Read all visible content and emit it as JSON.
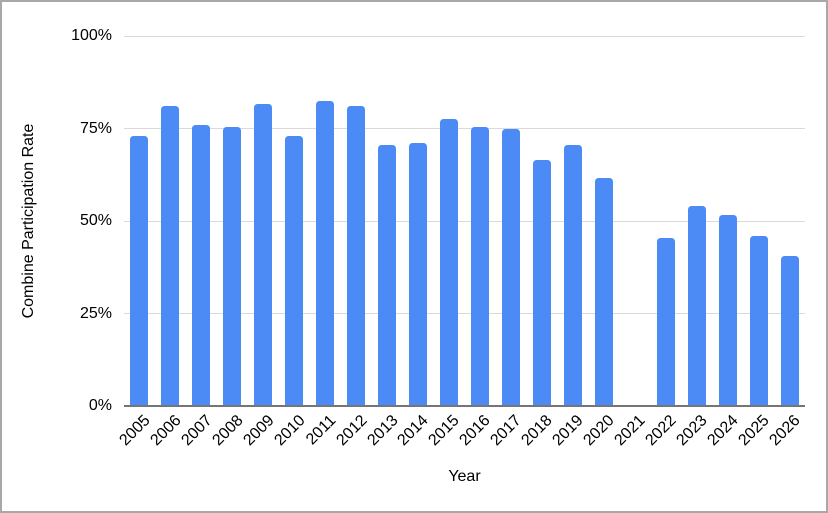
{
  "chart_data": {
    "type": "bar",
    "title": "",
    "xlabel": "Year",
    "ylabel": "Combine Participation Rate",
    "categories": [
      "2005",
      "2006",
      "2007",
      "2008",
      "2009",
      "2010",
      "2011",
      "2012",
      "2013",
      "2014",
      "2015",
      "2016",
      "2017",
      "2018",
      "2019",
      "2020",
      "2021",
      "2022",
      "2023",
      "2024",
      "2025",
      "2026"
    ],
    "values": [
      73,
      81,
      76,
      75.5,
      81.5,
      73,
      82.5,
      81,
      70.5,
      71,
      77.5,
      75.5,
      75,
      66.5,
      70.5,
      61.5,
      null,
      45.5,
      54,
      51.5,
      46,
      40.5
    ],
    "ylim": [
      0,
      100
    ],
    "yticks": [
      0,
      25,
      50,
      75,
      100
    ],
    "ytick_labels": [
      "0%",
      "25%",
      "50%",
      "75%",
      "100%"
    ],
    "grid": true,
    "legend": false,
    "bar_color": "#4c8bf5"
  },
  "colors": {
    "bar": "#4c8bf5",
    "gridline": "#dadada",
    "axis_line": "#757575",
    "text": "#000000",
    "frame_border": "#a8a8a8",
    "background": "#ffffff"
  }
}
